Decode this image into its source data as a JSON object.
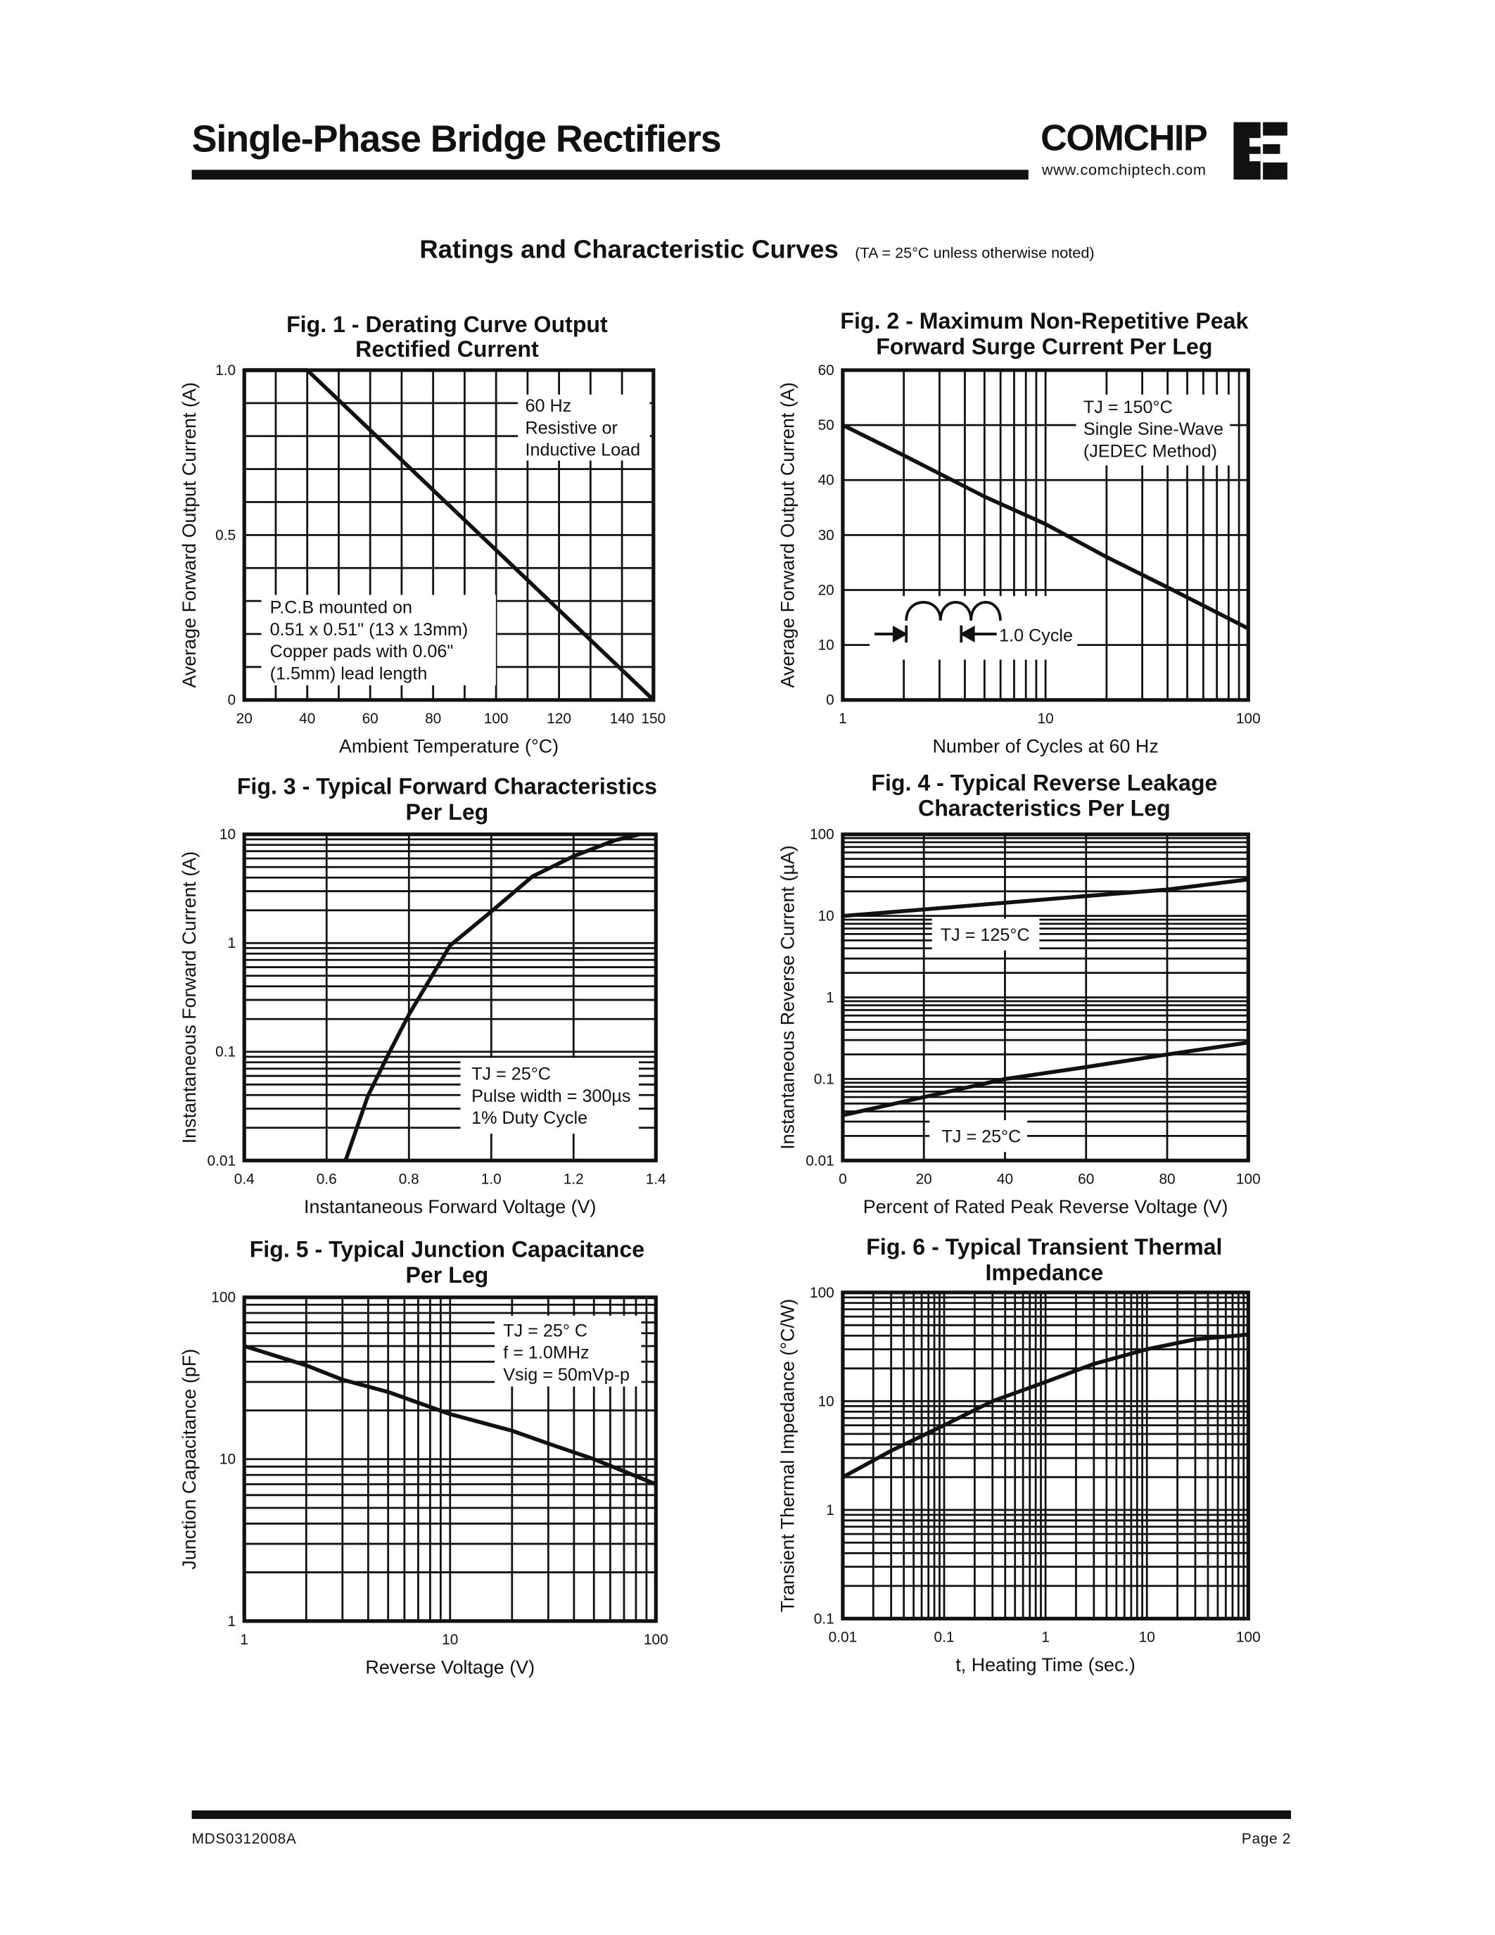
{
  "header": {
    "title": "Single-Phase Bridge Rectifiers",
    "brand": "COMCHIP",
    "website": "www.comchiptech.com"
  },
  "section": {
    "title": "Ratings and Characteristic Curves",
    "note": "(TA = 25°C unless otherwise noted)"
  },
  "footer": {
    "doc_number": "MDS0312008A",
    "page": "Page 2"
  },
  "chart_data": [
    {
      "type": "line",
      "title": [
        "Fig. 1 - Derating Curve Output",
        "Rectified Current"
      ],
      "xlabel": "Ambient Temperature (°C)",
      "ylabel": "Average Forward Output Current (A)",
      "xscale": "linear",
      "yscale": "linear",
      "xlim": [
        20,
        150
      ],
      "ylim": [
        0,
        1.0
      ],
      "xticks": [
        "20",
        "40",
        "60",
        "80",
        "100",
        "120",
        "140",
        "150"
      ],
      "yticks": [
        "0",
        "0.5",
        "1.0"
      ],
      "grid": true,
      "series": [
        {
          "x": [
            20,
            40,
            150
          ],
          "y": [
            1.0,
            1.0,
            0
          ]
        }
      ],
      "annotations": [
        [
          "60 Hz",
          "Resistive or",
          "Inductive Load"
        ],
        [
          "P.C.B mounted on",
          "0.51 x 0.51\" (13 x 13mm)",
          "Copper pads with 0.06\"",
          "(1.5mm) lead length"
        ]
      ]
    },
    {
      "type": "line",
      "title": [
        "Fig. 2 - Maximum Non-Repetitive Peak",
        "Forward Surge Current Per Leg"
      ],
      "xlabel": "Number of Cycles at 60 Hz",
      "ylabel": "Average Forward Output Current (A)",
      "xscale": "log",
      "yscale": "linear",
      "xlim": [
        1,
        100
      ],
      "ylim": [
        0,
        60
      ],
      "xticks": [
        "1",
        "10",
        "100"
      ],
      "yticks": [
        "0",
        "10",
        "20",
        "30",
        "40",
        "50",
        "60"
      ],
      "grid": true,
      "series": [
        {
          "x": [
            1,
            2,
            5,
            10,
            20,
            40,
            100
          ],
          "y": [
            50,
            44.5,
            37,
            32,
            26,
            20.5,
            13
          ]
        }
      ],
      "annotations": [
        [
          "TJ = 150°C",
          "Single Sine-Wave",
          "(JEDEC Method)"
        ],
        [
          "1.0 Cycle"
        ]
      ]
    },
    {
      "type": "line",
      "title": [
        "Fig. 3 - Typical Forward Characteristics",
        "Per Leg"
      ],
      "xlabel": "Instantaneous Forward Voltage (V)",
      "ylabel": "Instantaneous Forward Current (A)",
      "xscale": "linear",
      "yscale": "log",
      "xlim": [
        0.4,
        1.4
      ],
      "ylim": [
        0.01,
        10
      ],
      "xticks": [
        "0.4",
        "0.6",
        "0.8",
        "1.0",
        "1.2",
        "1.4"
      ],
      "yticks": [
        "0.01",
        "0.1",
        "1",
        "10"
      ],
      "grid": true,
      "series": [
        {
          "x": [
            0.646,
            0.7,
            0.75,
            0.8,
            0.9,
            1.0,
            1.1,
            1.2,
            1.3,
            1.36
          ],
          "y": [
            0.01,
            0.039,
            0.095,
            0.22,
            0.95,
            1.95,
            4.1,
            6.3,
            8.8,
            10
          ]
        }
      ],
      "annotations": [
        [
          "TJ = 25°C",
          "Pulse width = 300µs",
          "1% Duty Cycle"
        ]
      ]
    },
    {
      "type": "line",
      "title": [
        "Fig. 4 - Typical Reverse Leakage",
        "Characteristics Per Leg"
      ],
      "xlabel": "Percent of Rated Peak Reverse Voltage (V)",
      "ylabel": "Instantaneous Reverse Current (µA)",
      "xscale": "linear",
      "yscale": "log",
      "xlim": [
        0,
        100
      ],
      "ylim": [
        0.01,
        100
      ],
      "xticks": [
        "0",
        "20",
        "40",
        "60",
        "80",
        "100"
      ],
      "yticks": [
        "0.01",
        "0.1",
        "1",
        "10",
        "100"
      ],
      "grid": true,
      "series": [
        {
          "name": "TJ = 125°C",
          "x": [
            0,
            20,
            40,
            60,
            80,
            100
          ],
          "y": [
            10,
            12,
            14.5,
            17.5,
            21,
            28
          ]
        },
        {
          "name": "TJ = 25°C",
          "x": [
            0,
            20,
            40,
            60,
            80,
            100
          ],
          "y": [
            0.036,
            0.06,
            0.1,
            0.14,
            0.2,
            0.28
          ]
        }
      ],
      "annotations": [
        [
          "TJ = 125°C"
        ],
        [
          "TJ = 25°C"
        ]
      ]
    },
    {
      "type": "line",
      "title": [
        "Fig. 5 - Typical Junction Capacitance",
        "Per Leg"
      ],
      "xlabel": "Reverse Voltage (V)",
      "ylabel": "Junction Capacitance (pF)",
      "xscale": "log",
      "yscale": "log",
      "xlim": [
        1,
        100
      ],
      "ylim": [
        1,
        100
      ],
      "xticks": [
        "1",
        "10",
        "100"
      ],
      "yticks": [
        "1",
        "10",
        "100"
      ],
      "grid": true,
      "series": [
        {
          "x": [
            1,
            2,
            3,
            5,
            10,
            20,
            30,
            50,
            100
          ],
          "y": [
            50,
            38,
            31,
            26,
            19,
            15,
            12.5,
            10,
            7
          ]
        }
      ],
      "annotations": [
        [
          "TJ = 25° C",
          "f = 1.0MHz",
          "Vsig = 50mVp-p"
        ]
      ]
    },
    {
      "type": "line",
      "title": [
        "Fig. 6 - Typical Transient Thermal",
        "Impedance"
      ],
      "xlabel": "t, Heating Time (sec.)",
      "ylabel": "Transient Thermal Impedance (°C/W)",
      "xscale": "log",
      "yscale": "log",
      "xlim": [
        0.01,
        100
      ],
      "ylim": [
        0.1,
        100
      ],
      "xticks": [
        "0.01",
        "0.1",
        "1",
        "10",
        "100"
      ],
      "yticks": [
        "0.1",
        "1",
        "10",
        "100"
      ],
      "grid": true,
      "series": [
        {
          "x": [
            0.01,
            0.03,
            0.1,
            0.3,
            1,
            3,
            10,
            30,
            100
          ],
          "y": [
            2,
            3.5,
            6,
            10,
            15,
            22,
            30,
            37,
            41
          ]
        }
      ],
      "annotations": []
    }
  ]
}
